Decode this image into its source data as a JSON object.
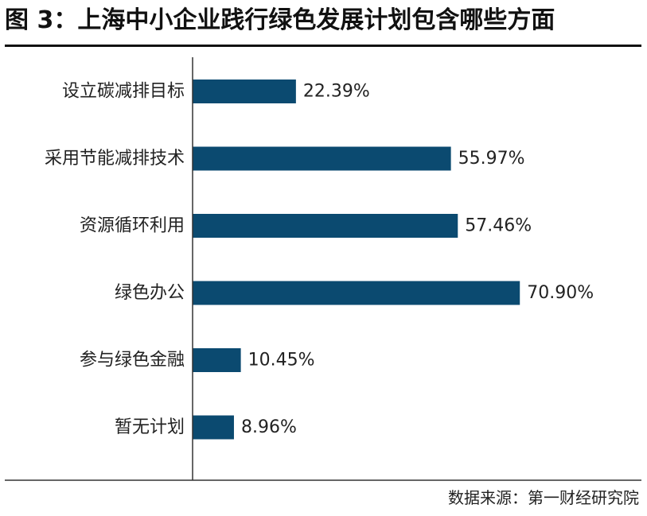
{
  "page": {
    "title": "图 3：上海中小企业践行绿色发展计划包含哪些方面",
    "source": "数据来源：第一财经研究院"
  },
  "colors": {
    "bar": "#0b4a70",
    "axis": "#333333",
    "title_rule": "#111111"
  },
  "chart_data": {
    "type": "bar",
    "orientation": "horizontal",
    "title": "图 3：上海中小企业践行绿色发展计划包含哪些方面",
    "categories": [
      "设立碳减排目标",
      "采用节能减排技术",
      "资源循环利用",
      "绿色办公",
      "参与绿色金融",
      "暂无计划"
    ],
    "values": [
      22.39,
      55.97,
      57.46,
      70.9,
      10.45,
      8.96
    ],
    "value_labels": [
      "22.39%",
      "55.97%",
      "57.46%",
      "70.90%",
      "10.45%",
      "8.96%"
    ],
    "unit": "%",
    "xlim": [
      0,
      80
    ],
    "xlabel": "",
    "ylabel": "",
    "grid": false,
    "legend": "none"
  }
}
